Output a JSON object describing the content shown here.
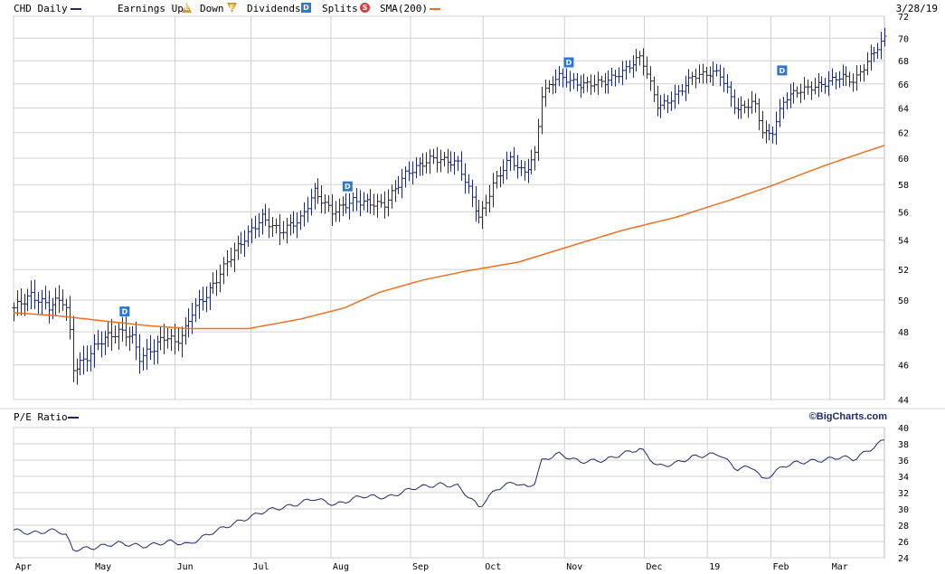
{
  "legend": {
    "symbol_label": "CHD Daily",
    "earnings_label": "Earnings Up",
    "earnings_up_badge": "E",
    "down_label": "Down",
    "earnings_down_badge": "E",
    "dividends_label": "Dividends",
    "dividend_badge": "D",
    "splits_label": "Splits",
    "split_badge": "S",
    "sma_label": "SMA(200)",
    "date": "3/28/19"
  },
  "colors": {
    "price": "#1f2a6b",
    "sma": "#f07020",
    "grid": "#d0d0d0",
    "dividend_badge": "#2b77d8",
    "split_badge": "#d04040",
    "earnings_badge": "#d89a20"
  },
  "pe": {
    "title": "P/E Ratio",
    "brand": "©BigCharts.com"
  },
  "chart_data": [
    {
      "type": "bar",
      "style": "ohlc",
      "title": "CHD Daily",
      "x_tick_labels": [
        "Apr",
        "May",
        "Jun",
        "Jul",
        "Aug",
        "Sep",
        "Oct",
        "Nov",
        "Dec",
        "19",
        "Feb",
        "Mar"
      ],
      "x_tick_fractions": [
        0.0,
        0.0915,
        0.1855,
        0.2726,
        0.3644,
        0.4559,
        0.5392,
        0.6326,
        0.7243,
        0.7967,
        0.8697,
        0.9374
      ],
      "y_tick_labels": [
        "44",
        "46",
        "48",
        "50",
        "52",
        "54",
        "56",
        "58",
        "60",
        "62",
        "64",
        "66",
        "68",
        "70",
        "72"
      ],
      "ylim": [
        44,
        72
      ],
      "y_scale": "log",
      "grid": true,
      "dividends": [
        {
          "label": "D",
          "x_fraction": 0.127,
          "value": 49.3
        },
        {
          "label": "D",
          "x_fraction": 0.383,
          "value": 57.9
        },
        {
          "label": "D",
          "x_fraction": 0.637,
          "value": 67.9
        },
        {
          "label": "D",
          "x_fraction": 0.882,
          "value": 67.2
        }
      ],
      "price_keypoints": [
        [
          0.0,
          49.5
        ],
        [
          0.02,
          50.3
        ],
        [
          0.04,
          49.6
        ],
        [
          0.055,
          50.1
        ],
        [
          0.062,
          49.2
        ],
        [
          0.068,
          45.8
        ],
        [
          0.08,
          46.2
        ],
        [
          0.1,
          47.5
        ],
        [
          0.12,
          48.0
        ],
        [
          0.135,
          47.8
        ],
        [
          0.145,
          46.4
        ],
        [
          0.16,
          47.0
        ],
        [
          0.175,
          47.8
        ],
        [
          0.185,
          47.3
        ],
        [
          0.196,
          48.0
        ],
        [
          0.205,
          49.3
        ],
        [
          0.225,
          50.6
        ],
        [
          0.25,
          53.0
        ],
        [
          0.285,
          55.6
        ],
        [
          0.305,
          54.6
        ],
        [
          0.33,
          55.5
        ],
        [
          0.345,
          57.5
        ],
        [
          0.365,
          56.0
        ],
        [
          0.39,
          56.8
        ],
        [
          0.425,
          56.5
        ],
        [
          0.45,
          58.8
        ],
        [
          0.48,
          60.0
        ],
        [
          0.51,
          59.6
        ],
        [
          0.52,
          58.0
        ],
        [
          0.535,
          55.5
        ],
        [
          0.55,
          58.0
        ],
        [
          0.57,
          60.0
        ],
        [
          0.585,
          58.8
        ],
        [
          0.6,
          60.4
        ],
        [
          0.605,
          65.0
        ],
        [
          0.625,
          66.7
        ],
        [
          0.65,
          65.9
        ],
        [
          0.68,
          66.2
        ],
        [
          0.7,
          67.1
        ],
        [
          0.72,
          68.4
        ],
        [
          0.74,
          64.0
        ],
        [
          0.76,
          65.0
        ],
        [
          0.78,
          66.7
        ],
        [
          0.81,
          67.0
        ],
        [
          0.83,
          63.8
        ],
        [
          0.85,
          64.5
        ],
        [
          0.86,
          62.0
        ],
        [
          0.87,
          61.8
        ],
        [
          0.885,
          64.8
        ],
        [
          0.9,
          65.4
        ],
        [
          0.93,
          66.0
        ],
        [
          0.95,
          66.7
        ],
        [
          0.965,
          66.2
        ],
        [
          0.985,
          68.5
        ],
        [
          1.0,
          70.0
        ]
      ],
      "series": [
        {
          "name": "SMA(200)",
          "keypoints": [
            [
              0.0,
              49.2
            ],
            [
              0.05,
              49.0
            ],
            [
              0.1,
              48.7
            ],
            [
              0.15,
              48.4
            ],
            [
              0.2,
              48.2
            ],
            [
              0.27,
              48.2
            ],
            [
              0.33,
              48.8
            ],
            [
              0.38,
              49.5
            ],
            [
              0.42,
              50.5
            ],
            [
              0.47,
              51.3
            ],
            [
              0.52,
              51.9
            ],
            [
              0.58,
              52.5
            ],
            [
              0.64,
              53.6
            ],
            [
              0.7,
              54.7
            ],
            [
              0.76,
              55.6
            ],
            [
              0.82,
              56.8
            ],
            [
              0.87,
              57.9
            ],
            [
              0.93,
              59.4
            ],
            [
              1.0,
              61.0
            ]
          ]
        }
      ]
    },
    {
      "type": "line",
      "title": "P/E Ratio",
      "y_tick_labels": [
        "24",
        "26",
        "28",
        "30",
        "32",
        "34",
        "36",
        "38",
        "40"
      ],
      "ylim": [
        24,
        40
      ],
      "grid": true,
      "keypoints": [
        [
          0.0,
          27.4
        ],
        [
          0.02,
          27.0
        ],
        [
          0.05,
          27.4
        ],
        [
          0.06,
          26.8
        ],
        [
          0.068,
          25.0
        ],
        [
          0.09,
          25.2
        ],
        [
          0.12,
          25.8
        ],
        [
          0.15,
          25.4
        ],
        [
          0.18,
          26.0
        ],
        [
          0.2,
          25.6
        ],
        [
          0.23,
          27.2
        ],
        [
          0.26,
          28.5
        ],
        [
          0.29,
          29.8
        ],
        [
          0.32,
          30.4
        ],
        [
          0.345,
          31.3
        ],
        [
          0.37,
          30.5
        ],
        [
          0.4,
          31.6
        ],
        [
          0.43,
          31.4
        ],
        [
          0.46,
          32.6
        ],
        [
          0.49,
          33.0
        ],
        [
          0.51,
          32.8
        ],
        [
          0.535,
          30.2
        ],
        [
          0.555,
          32.5
        ],
        [
          0.575,
          33.3
        ],
        [
          0.59,
          32.6
        ],
        [
          0.6,
          33.4
        ],
        [
          0.605,
          35.8
        ],
        [
          0.625,
          36.8
        ],
        [
          0.65,
          35.8
        ],
        [
          0.68,
          36.0
        ],
        [
          0.7,
          36.8
        ],
        [
          0.72,
          37.4
        ],
        [
          0.74,
          35.2
        ],
        [
          0.76,
          35.6
        ],
        [
          0.78,
          36.4
        ],
        [
          0.81,
          36.8
        ],
        [
          0.83,
          34.9
        ],
        [
          0.85,
          35.2
        ],
        [
          0.86,
          33.5
        ],
        [
          0.87,
          34.2
        ],
        [
          0.885,
          35.3
        ],
        [
          0.9,
          35.7
        ],
        [
          0.93,
          36.0
        ],
        [
          0.95,
          36.4
        ],
        [
          0.965,
          36.1
        ],
        [
          0.985,
          37.4
        ],
        [
          1.0,
          38.5
        ]
      ]
    }
  ]
}
